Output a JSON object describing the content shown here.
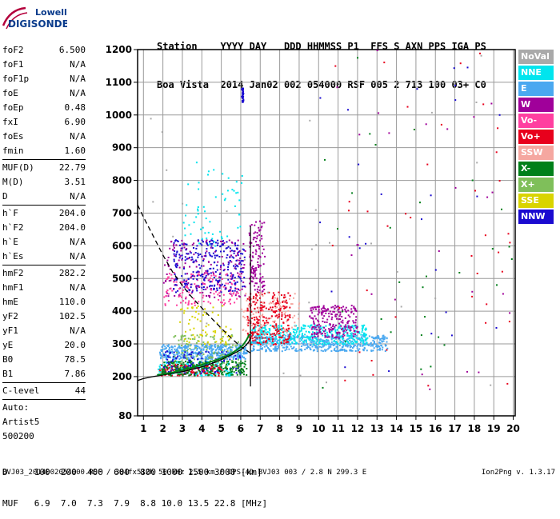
{
  "logo": {
    "line1": "Lowell",
    "line2": "DIGISONDE"
  },
  "header": {
    "labels": [
      "Station",
      "YYYY",
      "DAY",
      "DDD",
      "HHMMSS",
      "P1",
      "FFS",
      "S",
      "AXN",
      "PPS",
      "IGA",
      "PS"
    ],
    "values": [
      "Boa Vista",
      "2014",
      "Jan02",
      "002",
      "054000",
      "RSF",
      "005",
      "2",
      "713",
      "100",
      "03+",
      "C0"
    ]
  },
  "params": [
    {
      "group": [
        {
          "label": "foF2",
          "value": "6.500"
        },
        {
          "label": "foF1",
          "value": "N/A"
        },
        {
          "label": "foF1p",
          "value": "N/A"
        },
        {
          "label": "foE",
          "value": "N/A"
        },
        {
          "label": "foEp",
          "value": "0.48"
        },
        {
          "label": "fxI",
          "value": "6.90"
        },
        {
          "label": "foEs",
          "value": "N/A"
        },
        {
          "label": "fmin",
          "value": "1.60"
        }
      ]
    },
    {
      "group": [
        {
          "label": "MUF(D)",
          "value": "22.79"
        },
        {
          "label": "M(D)",
          "value": "3.51"
        },
        {
          "label": "D",
          "value": "N/A"
        }
      ]
    },
    {
      "group": [
        {
          "label": "h`F",
          "value": "204.0"
        },
        {
          "label": "h`F2",
          "value": "204.0"
        },
        {
          "label": "h`E",
          "value": "N/A"
        },
        {
          "label": "h`Es",
          "value": "N/A"
        }
      ]
    },
    {
      "group": [
        {
          "label": "hmF2",
          "value": "282.2"
        },
        {
          "label": "hmF1",
          "value": "N/A"
        },
        {
          "label": "hmE",
          "value": "110.0"
        },
        {
          "label": "yF2",
          "value": "102.5"
        },
        {
          "label": "yF1",
          "value": "N/A"
        },
        {
          "label": "yE",
          "value": "20.0"
        },
        {
          "label": "B0",
          "value": "78.5"
        },
        {
          "label": "B1",
          "value": "7.86"
        }
      ]
    },
    {
      "group": [
        {
          "label": "C-level",
          "value": "44"
        }
      ]
    }
  ],
  "auto_block": [
    "Auto:",
    "Artist5",
    "500200"
  ],
  "legend": [
    {
      "label": "NoVal",
      "color": "#a9a9a9"
    },
    {
      "label": "NNE",
      "color": "#00e5ee"
    },
    {
      "label": "E",
      "color": "#4aa8f0"
    },
    {
      "label": "W",
      "color": "#a0009a"
    },
    {
      "label": "Vo-",
      "color": "#ff3fa0"
    },
    {
      "label": "Vo+",
      "color": "#e8001c"
    },
    {
      "label": "SSW",
      "color": "#f5a7a0"
    },
    {
      "label": "X-",
      "color": "#00801a"
    },
    {
      "label": "X+",
      "color": "#7fbf5a"
    },
    {
      "label": "SSE",
      "color": "#d9d400"
    },
    {
      "label": "NNW",
      "color": "#1a0ad0"
    }
  ],
  "dtable": {
    "d_label": "D",
    "d_values": [
      "100",
      "200",
      "400",
      "600",
      "800",
      "1000",
      "1500",
      "3000"
    ],
    "d_unit": "[km]",
    "muf_label": "MUF",
    "muf_values": [
      "6.9",
      "7.0",
      "7.3",
      "7.9",
      "8.8",
      "10.0",
      "13.5",
      "22.8"
    ],
    "muf_unit": "[MHz]"
  },
  "footer": "BVJ03_2014002054000.RSF / 384fx512h 50 kHz 2.5 km / DPS-4D BVJ03 003 / 2.8 N 299.3 E",
  "version": "Ion2Png v. 1.3.17",
  "chart_data": {
    "type": "scatter",
    "title": "",
    "xlabel": "",
    "ylabel": "",
    "xlim": [
      0.7,
      20.1
    ],
    "ylim": [
      80,
      1200
    ],
    "x_ticks": [
      1,
      2,
      3,
      4,
      5,
      6,
      7,
      8,
      9,
      10,
      11,
      12,
      13,
      14,
      15,
      16,
      17,
      18,
      19,
      20
    ],
    "y_ticks": [
      80,
      200,
      300,
      400,
      500,
      600,
      700,
      800,
      900,
      1000,
      1100,
      1200
    ],
    "grid": true,
    "legend_position": "right",
    "fof2_marker": 6.5,
    "series": [
      {
        "kind": "line",
        "style": "solid",
        "color": "#000000",
        "x": [
          0.7,
          1.0,
          1.5,
          2.0,
          2.5,
          3.0,
          3.5,
          4.0,
          4.5,
          5.0,
          5.5,
          6.0,
          6.2,
          6.4,
          6.5
        ],
        "y": [
          188,
          194,
          200,
          205,
          210,
          215,
          222,
          230,
          240,
          252,
          266,
          282,
          292,
          305,
          318
        ]
      },
      {
        "kind": "line",
        "style": "dashed",
        "color": "#000000",
        "x": [
          0.7,
          1.0,
          1.5,
          2.0,
          2.5,
          3.0,
          3.5,
          4.0,
          4.5,
          5.0,
          5.5,
          6.0,
          6.5
        ],
        "y": [
          725,
          688,
          630,
          572,
          520,
          478,
          442,
          410,
          378,
          348,
          318,
          292,
          272
        ]
      },
      {
        "kind": "line",
        "style": "solid",
        "color": "#00801a",
        "x": [
          1.7,
          2.0,
          2.5,
          3.0,
          3.5,
          4.0,
          4.5,
          5.0,
          5.5,
          5.8,
          6.1,
          6.3,
          6.45
        ],
        "y": [
          205,
          208,
          213,
          220,
          228,
          236,
          246,
          256,
          270,
          282,
          295,
          312,
          330
        ]
      },
      {
        "kind": "vline",
        "color": "#000000",
        "x": 6.5,
        "y": [
          170,
          660
        ]
      },
      {
        "kind": "cluster",
        "name": "E",
        "color": "#4aa8f0",
        "x": [
          1.8,
          6.3
        ],
        "y": [
          255,
          300
        ],
        "count": 420
      },
      {
        "kind": "cluster",
        "name": "E",
        "color": "#4aa8f0",
        "x": [
          6.5,
          13.5
        ],
        "y": [
          280,
          330
        ],
        "count": 520
      },
      {
        "kind": "cluster",
        "name": "NNE",
        "color": "#00e5ee",
        "x": [
          6.5,
          12.5
        ],
        "y": [
          300,
          360
        ],
        "count": 380
      },
      {
        "kind": "cluster",
        "name": "NNE",
        "color": "#00e5ee",
        "x": [
          1.7,
          5.5
        ],
        "y": [
          205,
          250
        ],
        "count": 160
      },
      {
        "kind": "cluster",
        "name": "W",
        "color": "#a0009a",
        "x": [
          9.5,
          12.0
        ],
        "y": [
          320,
          420
        ],
        "count": 220
      },
      {
        "kind": "cluster",
        "name": "W",
        "color": "#a0009a",
        "x": [
          2.0,
          6.2
        ],
        "y": [
          440,
          620
        ],
        "count": 180
      },
      {
        "kind": "cluster",
        "name": "Vo+",
        "color": "#e8001c",
        "x": [
          6.3,
          8.5
        ],
        "y": [
          300,
          460
        ],
        "count": 260
      },
      {
        "kind": "cluster",
        "name": "Vo+",
        "color": "#e8001c",
        "x": [
          1.8,
          5.0
        ],
        "y": [
          205,
          240
        ],
        "count": 140
      },
      {
        "kind": "cluster",
        "name": "Vo-",
        "color": "#ff3fa0",
        "x": [
          2.0,
          6.0
        ],
        "y": [
          420,
          520
        ],
        "count": 140
      },
      {
        "kind": "cluster",
        "name": "NNW",
        "color": "#1a0ad0",
        "x": [
          2.5,
          6.2
        ],
        "y": [
          460,
          620
        ],
        "count": 260
      },
      {
        "kind": "cluster",
        "name": "NNW",
        "color": "#1a0ad0",
        "x": [
          2.0,
          6.0
        ],
        "y": [
          210,
          280
        ],
        "count": 120
      },
      {
        "kind": "cluster",
        "name": "X-",
        "color": "#00801a",
        "x": [
          1.9,
          6.3
        ],
        "y": [
          205,
          250
        ],
        "count": 200
      },
      {
        "kind": "cluster",
        "name": "X+",
        "color": "#7fbf5a",
        "x": [
          2.5,
          6.0
        ],
        "y": [
          230,
          330
        ],
        "count": 120
      },
      {
        "kind": "cluster",
        "name": "SSE",
        "color": "#d9d400",
        "x": [
          2.8,
          5.5
        ],
        "y": [
          300,
          420
        ],
        "count": 70
      },
      {
        "kind": "cluster",
        "name": "SSW",
        "color": "#f5a7a0",
        "x": [
          6.0,
          9.0
        ],
        "y": [
          330,
          460
        ],
        "count": 90
      },
      {
        "kind": "cluster",
        "name": "NNE",
        "color": "#00e5ee",
        "x": [
          3.0,
          6.2
        ],
        "y": [
          600,
          860
        ],
        "count": 60
      },
      {
        "kind": "cluster",
        "name": "W",
        "color": "#a0009a",
        "x": [
          6.4,
          7.2
        ],
        "y": [
          460,
          680
        ],
        "count": 120
      },
      {
        "kind": "cluster",
        "name": "NNW",
        "color": "#1a0ad0",
        "x": [
          6.0,
          6.1
        ],
        "y": [
          1040,
          1085
        ],
        "count": 30
      },
      {
        "kind": "cluster",
        "name": "NoVal",
        "color": "#a9a9a9",
        "x": [
          1.0,
          20.0
        ],
        "y": [
          150,
          1200
        ],
        "count": 30
      },
      {
        "kind": "cluster",
        "name": "Vo+",
        "color": "#e8001c",
        "x": [
          10.0,
          20.0
        ],
        "y": [
          150,
          1200
        ],
        "count": 40
      },
      {
        "kind": "cluster",
        "name": "X-",
        "color": "#00801a",
        "x": [
          10.0,
          20.0
        ],
        "y": [
          150,
          1200
        ],
        "count": 30
      },
      {
        "kind": "cluster",
        "name": "NNW",
        "color": "#1a0ad0",
        "x": [
          10.0,
          20.0
        ],
        "y": [
          150,
          1200
        ],
        "count": 25
      },
      {
        "kind": "cluster",
        "name": "W",
        "color": "#a0009a",
        "x": [
          10.0,
          20.0
        ],
        "y": [
          150,
          1200
        ],
        "count": 25
      }
    ]
  }
}
